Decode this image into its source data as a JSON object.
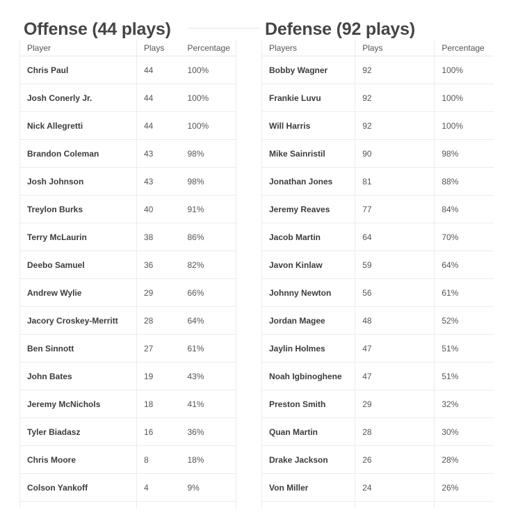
{
  "offense": {
    "title": "Offense (44 plays)",
    "headers": {
      "player": "Player",
      "plays": "Plays",
      "percentage": "Percentage"
    },
    "rows": [
      {
        "player": "Chris Paul",
        "plays": "44",
        "percentage": "100%"
      },
      {
        "player": "Josh Conerly Jr.",
        "plays": "44",
        "percentage": "100%"
      },
      {
        "player": "Nick Allegretti",
        "plays": "44",
        "percentage": "100%"
      },
      {
        "player": "Brandon Coleman",
        "plays": "43",
        "percentage": "98%"
      },
      {
        "player": "Josh Johnson",
        "plays": "43",
        "percentage": "98%"
      },
      {
        "player": "Treylon Burks",
        "plays": "40",
        "percentage": "91%"
      },
      {
        "player": "Terry McLaurin",
        "plays": "38",
        "percentage": "86%"
      },
      {
        "player": "Deebo Samuel",
        "plays": "36",
        "percentage": "82%"
      },
      {
        "player": "Andrew Wylie",
        "plays": "29",
        "percentage": "66%"
      },
      {
        "player": "Jacory Croskey-Merritt",
        "plays": "28",
        "percentage": "64%"
      },
      {
        "player": "Ben Sinnott",
        "plays": "27",
        "percentage": "61%"
      },
      {
        "player": "John Bates",
        "plays": "19",
        "percentage": "43%"
      },
      {
        "player": "Jeremy McNichols",
        "plays": "18",
        "percentage": "41%"
      },
      {
        "player": "Tyler Biadasz",
        "plays": "16",
        "percentage": "36%"
      },
      {
        "player": "Chris Moore",
        "plays": "8",
        "percentage": "18%"
      },
      {
        "player": "Colson Yankoff",
        "plays": "4",
        "percentage": "9%"
      }
    ]
  },
  "defense": {
    "title": "Defense (92 plays)",
    "headers": {
      "player": "Players",
      "plays": "Plays",
      "percentage": "Percentage"
    },
    "rows": [
      {
        "player": "Bobby Wagner",
        "plays": "92",
        "percentage": "100%"
      },
      {
        "player": "Frankie Luvu",
        "plays": "92",
        "percentage": "100%"
      },
      {
        "player": "Will Harris",
        "plays": "92",
        "percentage": "100%"
      },
      {
        "player": "Mike Sainristil",
        "plays": "90",
        "percentage": "98%"
      },
      {
        "player": "Jonathan Jones",
        "plays": "81",
        "percentage": "88%"
      },
      {
        "player": "Jeremy Reaves",
        "plays": "77",
        "percentage": "84%"
      },
      {
        "player": "Jacob Martin",
        "plays": "64",
        "percentage": "70%"
      },
      {
        "player": "Javon Kinlaw",
        "plays": "59",
        "percentage": "64%"
      },
      {
        "player": "Johnny Newton",
        "plays": "56",
        "percentage": "61%"
      },
      {
        "player": "Jordan Magee",
        "plays": "48",
        "percentage": "52%"
      },
      {
        "player": "Jaylin Holmes",
        "plays": "47",
        "percentage": "51%"
      },
      {
        "player": "Noah Igbinoghene",
        "plays": "47",
        "percentage": "51%"
      },
      {
        "player": "Preston Smith",
        "plays": "29",
        "percentage": "32%"
      },
      {
        "player": "Quan Martin",
        "plays": "28",
        "percentage": "30%"
      },
      {
        "player": "Drake Jackson",
        "plays": "26",
        "percentage": "28%"
      },
      {
        "player": "Von Miller",
        "plays": "24",
        "percentage": "26%"
      }
    ]
  }
}
